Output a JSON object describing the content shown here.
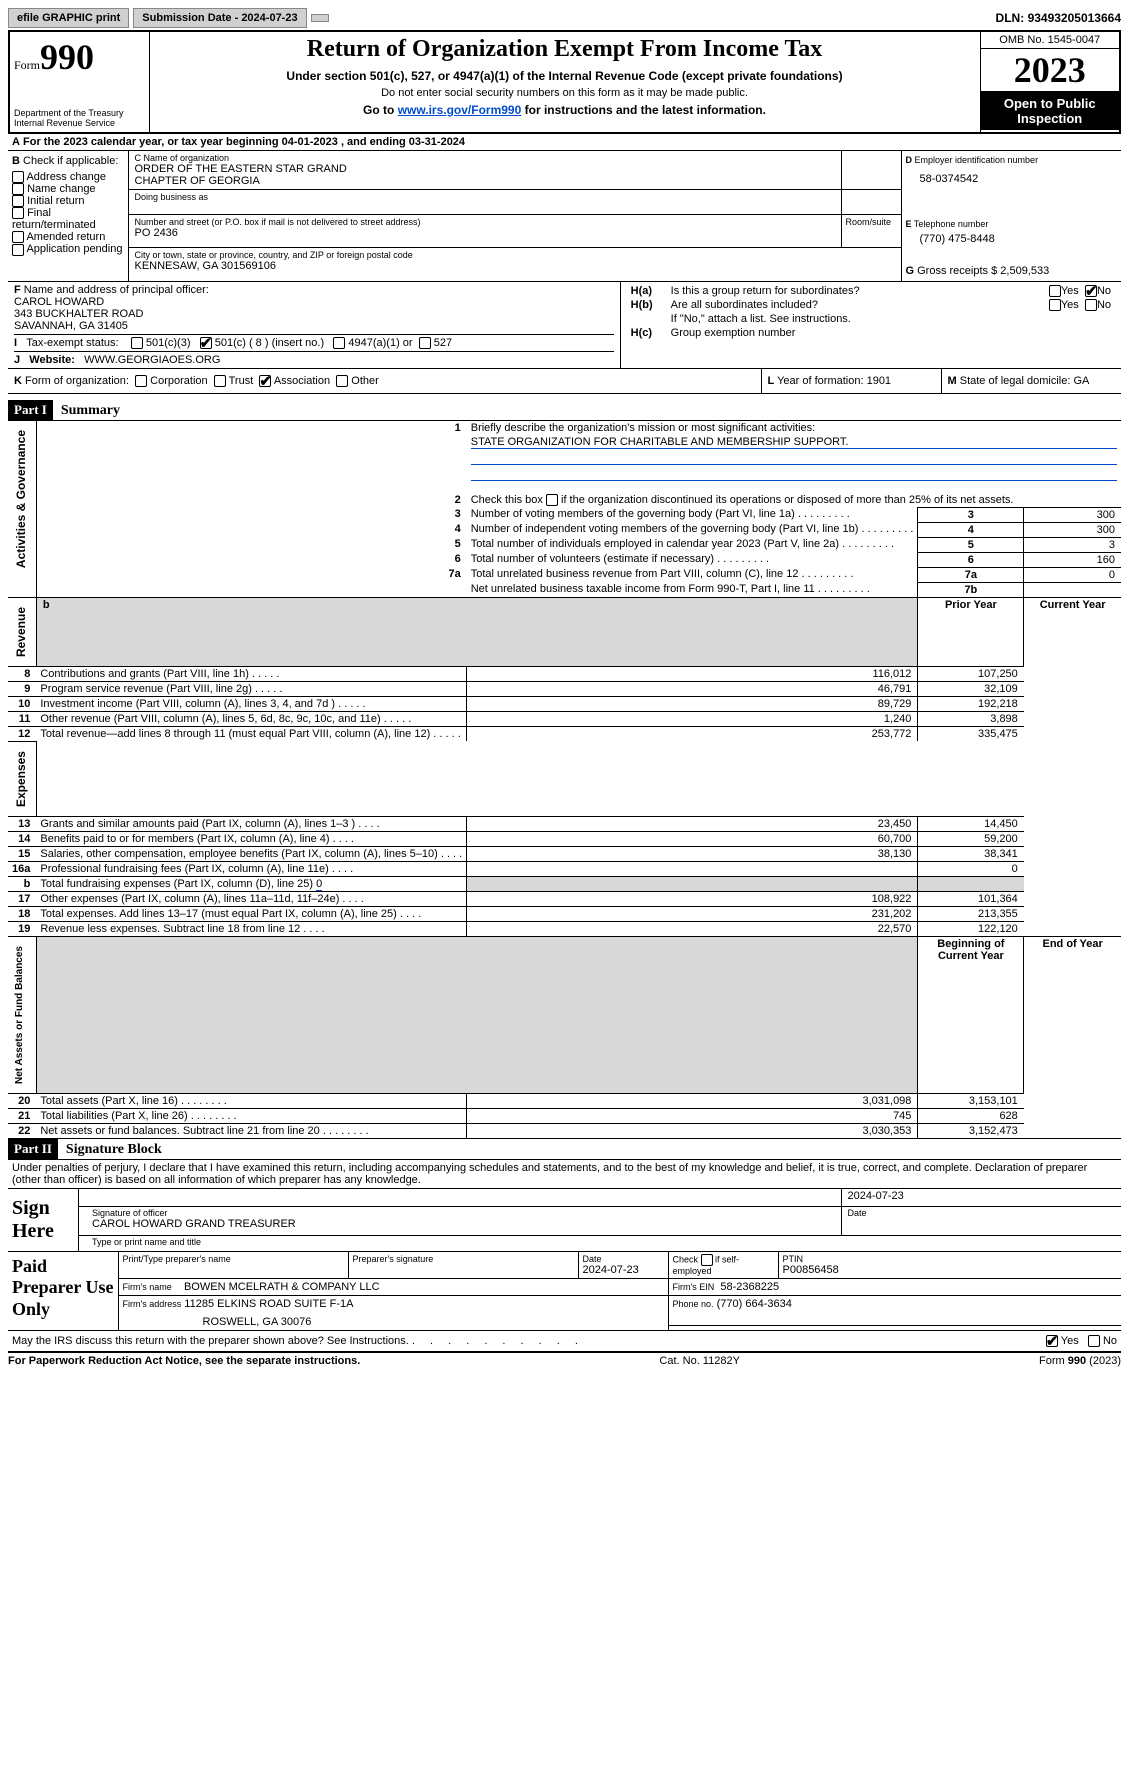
{
  "topbar": {
    "efile": "efile GRAPHIC print",
    "submission": "Submission Date - 2024-07-23",
    "dln_label": "DLN:",
    "dln": "93493205013664"
  },
  "header": {
    "form_word": "Form",
    "form_num": "990",
    "title": "Return of Organization Exempt From Income Tax",
    "subtitle1": "Under section 501(c), 527, or 4947(a)(1) of the Internal Revenue Code (except private foundations)",
    "subtitle2": "Do not enter social security numbers on this form as it may be made public.",
    "subtitle3_pre": "Go to ",
    "subtitle3_link": "www.irs.gov/Form990",
    "subtitle3_post": " for instructions and the latest information.",
    "dept": "Department of the Treasury\nInternal Revenue Service",
    "omb": "OMB No. 1545-0047",
    "year": "2023",
    "inspection": "Open to Public Inspection"
  },
  "A": {
    "text": "For the 2023 calendar year, or tax year beginning 04-01-2023    , and ending 03-31-2024",
    "prefix": "A"
  },
  "B": {
    "label": "B",
    "check_label": "Check if applicable:",
    "items": [
      "Address change",
      "Name change",
      "Initial return",
      "Final return/terminated",
      "Amended return",
      "Application pending"
    ]
  },
  "C": {
    "name_label": "C Name of organization",
    "name1": "ORDER OF THE EASTERN STAR GRAND",
    "name2": "CHAPTER OF GEORGIA",
    "dba_label": "Doing business as",
    "street_label": "Number and street (or P.O. box if mail is not delivered to street address)",
    "street": "PO 2436",
    "room_label": "Room/suite",
    "city_label": "City or town, state or province, country, and ZIP or foreign postal code",
    "city": "KENNESAW, GA  301569106"
  },
  "D": {
    "label": "D Employer identification number",
    "value": "58-0374542"
  },
  "E": {
    "label": "E Telephone number",
    "value": "(770) 475-8448"
  },
  "G": {
    "label": "G",
    "text": "Gross receipts $",
    "value": "2,509,533"
  },
  "F": {
    "label": "F",
    "text": "Name and address of principal officer:",
    "line1": "CAROL HOWARD",
    "line2": "343 BUCKHALTER ROAD",
    "line3": "SAVANNAH, GA  31405"
  },
  "H": {
    "a_label": "H(a)",
    "a_text": "Is this a group return for subordinates?",
    "b_label": "H(b)",
    "b_text": "Are all subordinates included?",
    "b_note": "If \"No,\" attach a list. See instructions.",
    "c_label": "H(c)",
    "c_text": "Group exemption number",
    "yes": "Yes",
    "no": "No"
  },
  "I": {
    "label": "I",
    "text": "Tax-exempt status:",
    "opts": [
      "501(c)(3)",
      "501(c) ( 8 ) (insert no.)",
      "4947(a)(1) or",
      "527"
    ]
  },
  "J": {
    "label": "J",
    "text": "Website:",
    "value": "WWW.GEORGIAOES.ORG"
  },
  "K": {
    "label": "K",
    "text": "Form of organization:",
    "opts": [
      "Corporation",
      "Trust",
      "Association",
      "Other"
    ]
  },
  "L": {
    "label": "L",
    "text": "Year of formation:",
    "value": "1901"
  },
  "M": {
    "label": "M",
    "text": "State of legal domicile:",
    "value": "GA"
  },
  "part1": {
    "label": "Part I",
    "title": "Summary",
    "sections": {
      "gov": "Activities & Governance",
      "rev": "Revenue",
      "exp": "Expenses",
      "net": "Net Assets or Fund Balances"
    },
    "l1_label": "1",
    "l1_text": "Briefly describe the organization's mission or most significant activities:",
    "l1_value": "STATE ORGANIZATION FOR CHARITABLE AND MEMBERSHIP SUPPORT.",
    "l2_label": "2",
    "l2_text_pre": "Check this box ",
    "l2_text_post": " if the organization discontinued its operations or disposed of more than 25% of its net assets.",
    "lines_gov": [
      {
        "n": "3",
        "t": "Number of voting members of the governing body (Part VI, line 1a)",
        "box": "3",
        "v": "300"
      },
      {
        "n": "4",
        "t": "Number of independent voting members of the governing body (Part VI, line 1b)",
        "box": "4",
        "v": "300"
      },
      {
        "n": "5",
        "t": "Total number of individuals employed in calendar year 2023 (Part V, line 2a)",
        "box": "5",
        "v": "3"
      },
      {
        "n": "6",
        "t": "Total number of volunteers (estimate if necessary)",
        "box": "6",
        "v": "160"
      },
      {
        "n": "7a",
        "t": "Total unrelated business revenue from Part VIII, column (C), line 12",
        "box": "7a",
        "v": "0"
      },
      {
        "n": "",
        "t": "Net unrelated business taxable income from Form 990-T, Part I, line 11",
        "box": "7b",
        "v": ""
      }
    ],
    "col_prior": "Prior Year",
    "col_current": "Current Year",
    "col_begin": "Beginning of Current Year",
    "col_end": "End of Year",
    "rev_lines": [
      {
        "n": "8",
        "t": "Contributions and grants (Part VIII, line 1h)",
        "p": "116,012",
        "c": "107,250"
      },
      {
        "n": "9",
        "t": "Program service revenue (Part VIII, line 2g)",
        "p": "46,791",
        "c": "32,109"
      },
      {
        "n": "10",
        "t": "Investment income (Part VIII, column (A), lines 3, 4, and 7d )",
        "p": "89,729",
        "c": "192,218"
      },
      {
        "n": "11",
        "t": "Other revenue (Part VIII, column (A), lines 5, 6d, 8c, 9c, 10c, and 11e)",
        "p": "1,240",
        "c": "3,898"
      },
      {
        "n": "12",
        "t": "Total revenue—add lines 8 through 11 (must equal Part VIII, column (A), line 12)",
        "p": "253,772",
        "c": "335,475"
      }
    ],
    "exp_lines": [
      {
        "n": "13",
        "t": "Grants and similar amounts paid (Part IX, column (A), lines 1–3 )",
        "p": "23,450",
        "c": "14,450"
      },
      {
        "n": "14",
        "t": "Benefits paid to or for members (Part IX, column (A), line 4)",
        "p": "60,700",
        "c": "59,200"
      },
      {
        "n": "15",
        "t": "Salaries, other compensation, employee benefits (Part IX, column (A), lines 5–10)",
        "p": "38,130",
        "c": "38,341"
      },
      {
        "n": "16a",
        "t": "Professional fundraising fees (Part IX, column (A), line 11e)",
        "p": "",
        "c": "0"
      },
      {
        "n": "b",
        "t": "Total fundraising expenses (Part IX, column (D), line 25)",
        "val": "0",
        "gray": true
      },
      {
        "n": "17",
        "t": "Other expenses (Part IX, column (A), lines 11a–11d, 11f–24e)",
        "p": "108,922",
        "c": "101,364"
      },
      {
        "n": "18",
        "t": "Total expenses. Add lines 13–17 (must equal Part IX, column (A), line 25)",
        "p": "231,202",
        "c": "213,355"
      },
      {
        "n": "19",
        "t": "Revenue less expenses. Subtract line 18 from line 12",
        "p": "22,570",
        "c": "122,120"
      }
    ],
    "net_lines": [
      {
        "n": "20",
        "t": "Total assets (Part X, line 16)",
        "p": "3,031,098",
        "c": "3,153,101"
      },
      {
        "n": "21",
        "t": "Total liabilities (Part X, line 26)",
        "p": "745",
        "c": "628"
      },
      {
        "n": "22",
        "t": "Net assets or fund balances. Subtract line 21 from line 20",
        "p": "3,030,353",
        "c": "3,152,473"
      }
    ]
  },
  "part2": {
    "label": "Part II",
    "title": "Signature Block",
    "declaration": "Under penalties of perjury, I declare that I have examined this return, including accompanying schedules and statements, and to the best of my knowledge and belief, it is true, correct, and complete. Declaration of preparer (other than officer) is based on all information of which preparer has any knowledge.",
    "sign_here": "Sign Here",
    "sig_date": "2024-07-23",
    "sig_label": "Signature of officer",
    "date_label": "Date",
    "officer": "CAROL HOWARD GRAND TREASURER",
    "type_label": "Type or print name and title",
    "paid": "Paid Preparer Use Only",
    "prep_name_label": "Print/Type preparer's name",
    "prep_sig_label": "Preparer's signature",
    "prep_date_label": "Date",
    "prep_date": "2024-07-23",
    "check_self": "Check         if self-employed",
    "ptin_label": "PTIN",
    "ptin": "P00856458",
    "firm_name_label": "Firm's name",
    "firm_name": "BOWEN MCELRATH & COMPANY LLC",
    "firm_ein_label": "Firm's EIN",
    "firm_ein": "58-2368225",
    "firm_addr_label": "Firm's address",
    "firm_addr1": "11285 ELKINS ROAD SUITE F-1A",
    "firm_addr2": "ROSWELL, GA  30076",
    "phone_label": "Phone no.",
    "phone": "(770) 664-3634",
    "discuss": "May the IRS discuss this return with the preparer shown above? See Instructions.",
    "yes": "Yes",
    "no": "No"
  },
  "footer": {
    "left": "For Paperwork Reduction Act Notice, see the separate instructions.",
    "mid": "Cat. No. 11282Y",
    "right_pre": "Form ",
    "right_form": "990",
    "right_post": " (2023)"
  }
}
